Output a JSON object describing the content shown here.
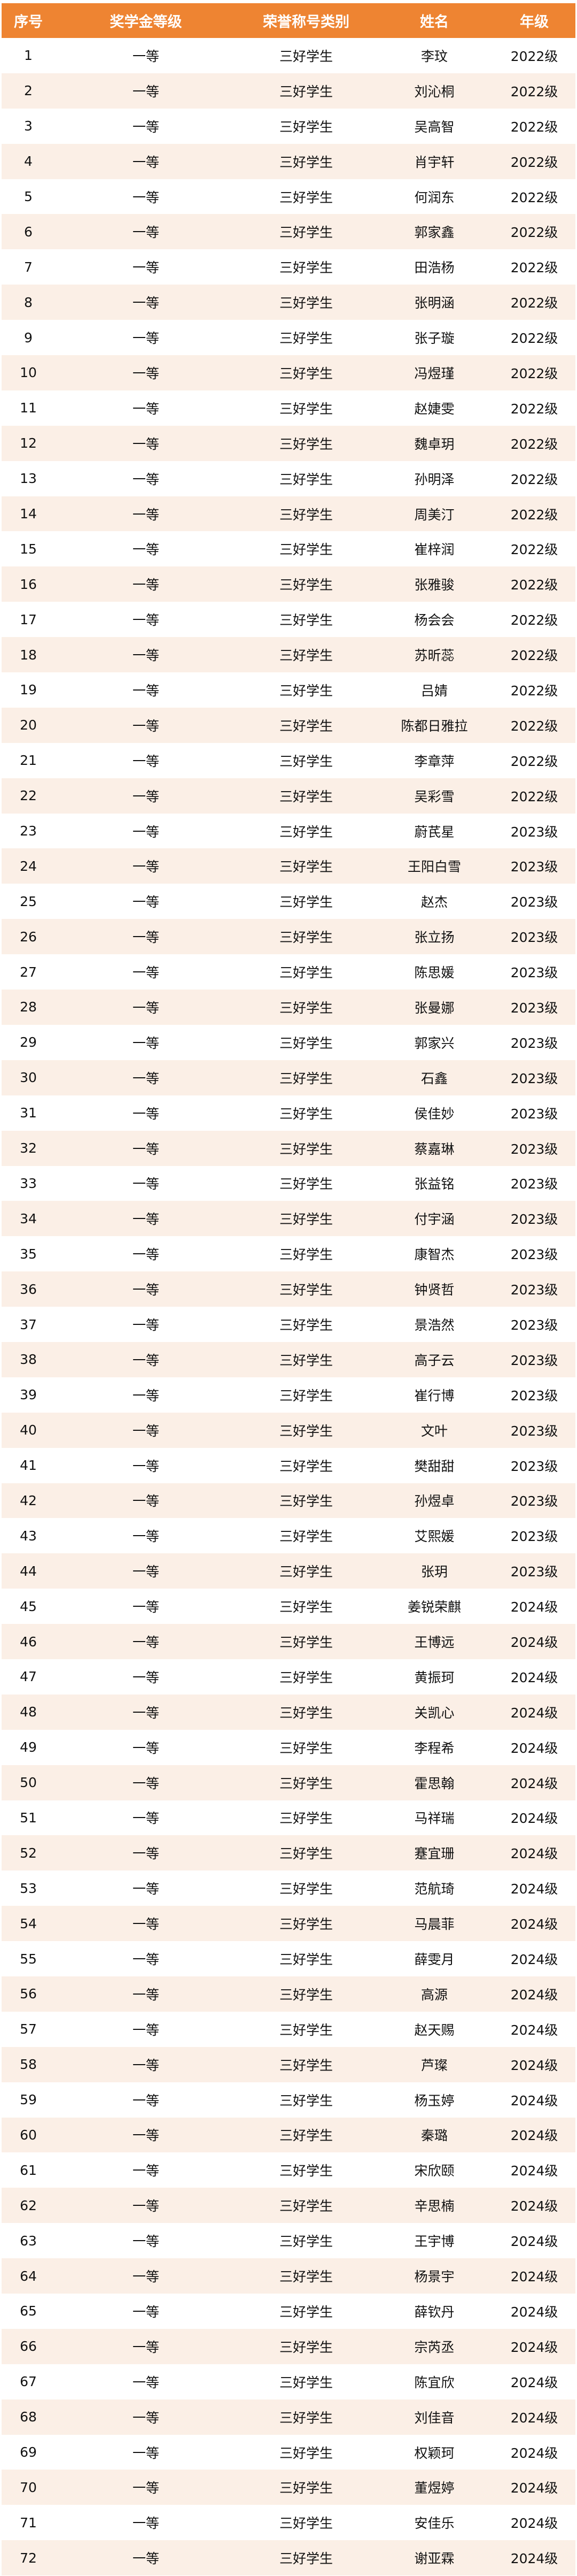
{
  "header": [
    "序号",
    "奖学金等级",
    "荣誉称号类别",
    "姓名",
    "年级"
  ],
  "colors": {
    "header_bg": "#ee8432",
    "alt_row_bg": "#fbefe6"
  },
  "rows": [
    [
      "1",
      "一等",
      "三好学生",
      "李玟",
      "2022级"
    ],
    [
      "2",
      "一等",
      "三好学生",
      "刘沁桐",
      "2022级"
    ],
    [
      "3",
      "一等",
      "三好学生",
      "吴高智",
      "2022级"
    ],
    [
      "4",
      "一等",
      "三好学生",
      "肖宇轩",
      "2022级"
    ],
    [
      "5",
      "一等",
      "三好学生",
      "何润东",
      "2022级"
    ],
    [
      "6",
      "一等",
      "三好学生",
      "郭家鑫",
      "2022级"
    ],
    [
      "7",
      "一等",
      "三好学生",
      "田浩杨",
      "2022级"
    ],
    [
      "8",
      "一等",
      "三好学生",
      "张明涵",
      "2022级"
    ],
    [
      "9",
      "一等",
      "三好学生",
      "张子璇",
      "2022级"
    ],
    [
      "10",
      "一等",
      "三好学生",
      "冯煜瑾",
      "2022级"
    ],
    [
      "11",
      "一等",
      "三好学生",
      "赵婕雯",
      "2022级"
    ],
    [
      "12",
      "一等",
      "三好学生",
      "魏卓玥",
      "2022级"
    ],
    [
      "13",
      "一等",
      "三好学生",
      "孙明泽",
      "2022级"
    ],
    [
      "14",
      "一等",
      "三好学生",
      "周美汀",
      "2022级"
    ],
    [
      "15",
      "一等",
      "三好学生",
      "崔梓润",
      "2022级"
    ],
    [
      "16",
      "一等",
      "三好学生",
      "张雅骏",
      "2022级"
    ],
    [
      "17",
      "一等",
      "三好学生",
      "杨会会",
      "2022级"
    ],
    [
      "18",
      "一等",
      "三好学生",
      "苏昕蕊",
      "2022级"
    ],
    [
      "19",
      "一等",
      "三好学生",
      "吕婧",
      "2022级"
    ],
    [
      "20",
      "一等",
      "三好学生",
      "陈都日雅拉",
      "2022级"
    ],
    [
      "21",
      "一等",
      "三好学生",
      "李章萍",
      "2022级"
    ],
    [
      "22",
      "一等",
      "三好学生",
      "吴彩雪",
      "2022级"
    ],
    [
      "23",
      "一等",
      "三好学生",
      "蔚芪星",
      "2023级"
    ],
    [
      "24",
      "一等",
      "三好学生",
      "王阳白雪",
      "2023级"
    ],
    [
      "25",
      "一等",
      "三好学生",
      "赵杰",
      "2023级"
    ],
    [
      "26",
      "一等",
      "三好学生",
      "张立扬",
      "2023级"
    ],
    [
      "27",
      "一等",
      "三好学生",
      "陈思媛",
      "2023级"
    ],
    [
      "28",
      "一等",
      "三好学生",
      "张曼娜",
      "2023级"
    ],
    [
      "29",
      "一等",
      "三好学生",
      "郭家兴",
      "2023级"
    ],
    [
      "30",
      "一等",
      "三好学生",
      "石鑫",
      "2023级"
    ],
    [
      "31",
      "一等",
      "三好学生",
      "侯佳妙",
      "2023级"
    ],
    [
      "32",
      "一等",
      "三好学生",
      "蔡嘉琳",
      "2023级"
    ],
    [
      "33",
      "一等",
      "三好学生",
      "张益铭",
      "2023级"
    ],
    [
      "34",
      "一等",
      "三好学生",
      "付宇涵",
      "2023级"
    ],
    [
      "35",
      "一等",
      "三好学生",
      "康智杰",
      "2023级"
    ],
    [
      "36",
      "一等",
      "三好学生",
      "钟贤哲",
      "2023级"
    ],
    [
      "37",
      "一等",
      "三好学生",
      "景浩然",
      "2023级"
    ],
    [
      "38",
      "一等",
      "三好学生",
      "高子云",
      "2023级"
    ],
    [
      "39",
      "一等",
      "三好学生",
      "崔行博",
      "2023级"
    ],
    [
      "40",
      "一等",
      "三好学生",
      "文叶",
      "2023级"
    ],
    [
      "41",
      "一等",
      "三好学生",
      "樊甜甜",
      "2023级"
    ],
    [
      "42",
      "一等",
      "三好学生",
      "孙煜卓",
      "2023级"
    ],
    [
      "43",
      "一等",
      "三好学生",
      "艾熙媛",
      "2023级"
    ],
    [
      "44",
      "一等",
      "三好学生",
      "张玥",
      "2023级"
    ],
    [
      "45",
      "一等",
      "三好学生",
      "姜锐荣麒",
      "2024级"
    ],
    [
      "46",
      "一等",
      "三好学生",
      "王博远",
      "2024级"
    ],
    [
      "47",
      "一等",
      "三好学生",
      "黄振珂",
      "2024级"
    ],
    [
      "48",
      "一等",
      "三好学生",
      "关凯心",
      "2024级"
    ],
    [
      "49",
      "一等",
      "三好学生",
      "李程希",
      "2024级"
    ],
    [
      "50",
      "一等",
      "三好学生",
      "霍思翰",
      "2024级"
    ],
    [
      "51",
      "一等",
      "三好学生",
      "马祥瑞",
      "2024级"
    ],
    [
      "52",
      "一等",
      "三好学生",
      "蹇宜珊",
      "2024级"
    ],
    [
      "53",
      "一等",
      "三好学生",
      "范航琦",
      "2024级"
    ],
    [
      "54",
      "一等",
      "三好学生",
      "马晨菲",
      "2024级"
    ],
    [
      "55",
      "一等",
      "三好学生",
      "薛雯月",
      "2024级"
    ],
    [
      "56",
      "一等",
      "三好学生",
      "高源",
      "2024级"
    ],
    [
      "57",
      "一等",
      "三好学生",
      "赵天赐",
      "2024级"
    ],
    [
      "58",
      "一等",
      "三好学生",
      "芦璨",
      "2024级"
    ],
    [
      "59",
      "一等",
      "三好学生",
      "杨玉婷",
      "2024级"
    ],
    [
      "60",
      "一等",
      "三好学生",
      "秦璐",
      "2024级"
    ],
    [
      "61",
      "一等",
      "三好学生",
      "宋欣颐",
      "2024级"
    ],
    [
      "62",
      "一等",
      "三好学生",
      "辛思楠",
      "2024级"
    ],
    [
      "63",
      "一等",
      "三好学生",
      "王宇博",
      "2024级"
    ],
    [
      "64",
      "一等",
      "三好学生",
      "杨景宇",
      "2024级"
    ],
    [
      "65",
      "一等",
      "三好学生",
      "薛钦丹",
      "2024级"
    ],
    [
      "66",
      "一等",
      "三好学生",
      "宗芮丞",
      "2024级"
    ],
    [
      "67",
      "一等",
      "三好学生",
      "陈宜欣",
      "2024级"
    ],
    [
      "68",
      "一等",
      "三好学生",
      "刘佳音",
      "2024级"
    ],
    [
      "69",
      "一等",
      "三好学生",
      "权颖珂",
      "2024级"
    ],
    [
      "70",
      "一等",
      "三好学生",
      "董煜婷",
      "2024级"
    ],
    [
      "71",
      "一等",
      "三好学生",
      "安佳乐",
      "2024级"
    ],
    [
      "72",
      "一等",
      "三好学生",
      "谢亚霖",
      "2024级"
    ]
  ]
}
